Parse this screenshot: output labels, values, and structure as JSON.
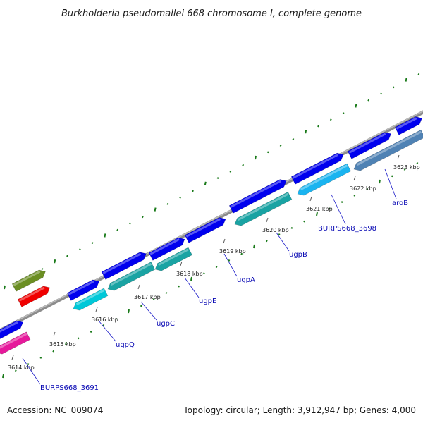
{
  "title": "Burkholderia pseudomallei 668 chromosome I, complete genome",
  "footer": {
    "accession": "Accession: NC_009074",
    "summary": "Topology: circular; Length: 3,912,947 bp; Genes: 4,000"
  },
  "scale": {
    "ticks": [
      "3614 kbp",
      "3615 kbp",
      "3616 kbp",
      "3617 kbp",
      "3618 kbp",
      "3619 kbp",
      "3620 kbp",
      "3621 kbp",
      "3622 kbp",
      "3623 kbp"
    ]
  },
  "gene_labels": [
    "BURPS668_3691",
    "ugpQ",
    "ugpC",
    "ugpE",
    "ugpA",
    "ugpB",
    "BURPS668_3698",
    "aroB"
  ],
  "colors": {
    "forward_cds": "#0000ee",
    "reverse_cds": "#00c8d8",
    "reverse_cds_dark": "#1aa3a3",
    "light_cds": "#1ab4f0",
    "steel_cds": "#4f82b4",
    "pink_cds": "#e6199b",
    "red_cds": "#f00000",
    "olive_cds": "#6b8e23",
    "backbone": "#8c8c8c",
    "gc_dots": "#1a7a1a"
  }
}
